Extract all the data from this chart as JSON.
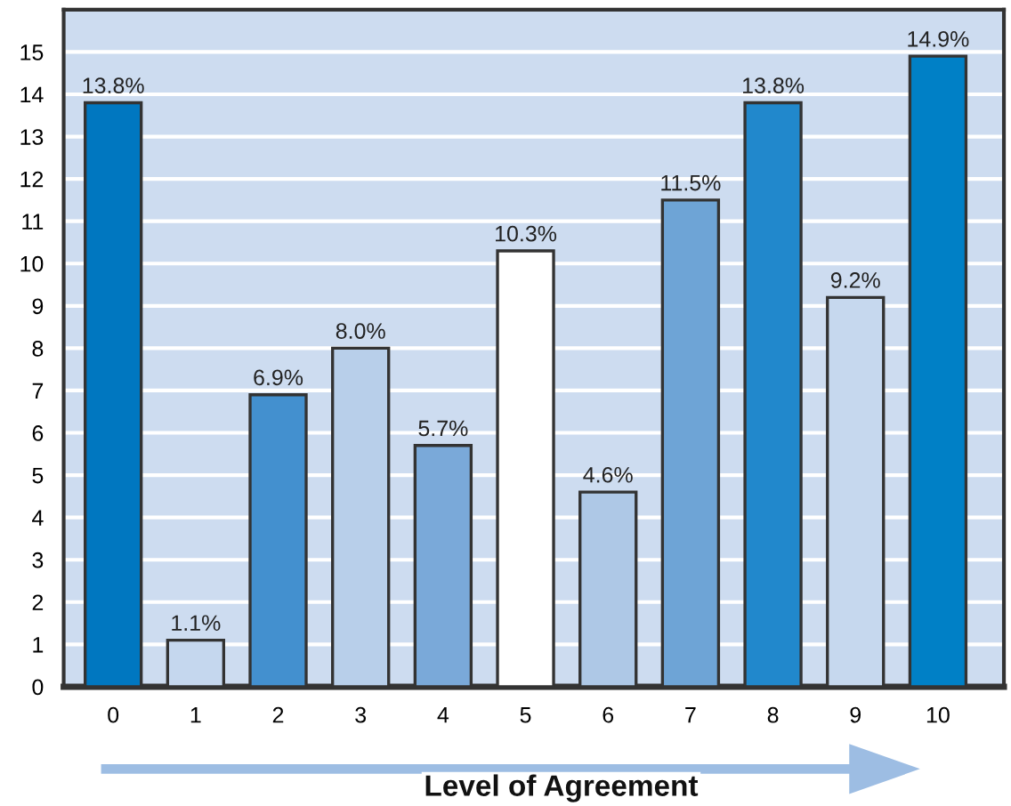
{
  "chart_data": {
    "type": "bar",
    "xlabel": "Level of Agreement",
    "categories": [
      "0",
      "1",
      "2",
      "3",
      "4",
      "5",
      "6",
      "7",
      "8",
      "9",
      "10"
    ],
    "values": [
      13.8,
      1.1,
      6.9,
      8.0,
      5.7,
      10.3,
      4.6,
      11.5,
      13.8,
      9.2,
      14.9
    ],
    "value_labels": [
      "13.8%",
      "1.1%",
      "6.9%",
      "8.0%",
      "5.7%",
      "10.3%",
      "4.6%",
      "11.5%",
      "13.8%",
      "9.2%",
      "14.9%"
    ],
    "colors": [
      "#0077c0",
      "#c5d7ee",
      "#4390cf",
      "#b8cfea",
      "#7aa9d9",
      "#ffffff",
      "#aec8e6",
      "#6ea4d6",
      "#2188cc",
      "#c6d8ee",
      "#0080c6"
    ],
    "ylim": [
      0,
      16
    ],
    "yticks": [
      0,
      1,
      2,
      3,
      4,
      5,
      6,
      7,
      8,
      9,
      10,
      11,
      12,
      13,
      14,
      15
    ],
    "grid": "y"
  }
}
